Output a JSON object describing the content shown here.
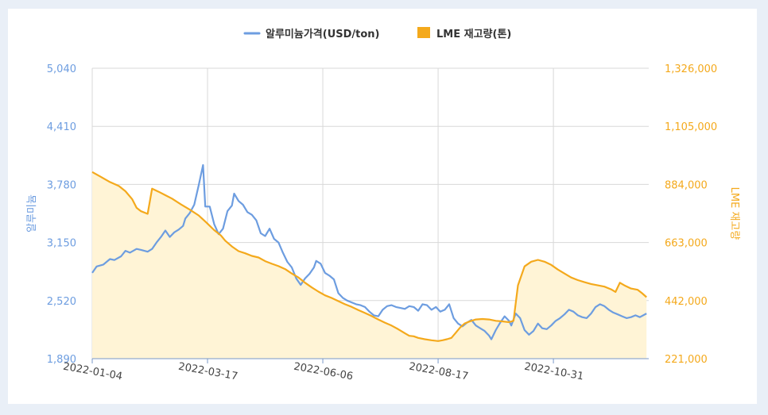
{
  "chart_data": {
    "type": "line",
    "legend": {
      "placement": "top-center",
      "items": [
        {
          "label": "알루미늄가격(USD/ton)",
          "color": "#6d9de0",
          "kind": "line"
        },
        {
          "label": "LME 재고량(톤)",
          "color": "#f4a91c",
          "kind": "area"
        }
      ]
    },
    "y_left": {
      "label": "알루미늄",
      "ticks": [
        "5,040",
        "4,410",
        "3,780",
        "3,150",
        "2,520",
        "1,890"
      ],
      "range": [
        1890,
        5040
      ],
      "color": "#6d9de0"
    },
    "y_right": {
      "label": "LME 재고량",
      "ticks": [
        "1,326,000",
        "1,105,000",
        "884,000",
        "663,000",
        "442,000",
        "221,000"
      ],
      "range": [
        221000,
        1326000
      ],
      "color": "#f4a91c"
    },
    "x": {
      "ticks": [
        "2022-01-04",
        "2022-03-17",
        "2022-06-06",
        "2022-08-17",
        "2022-10-31"
      ],
      "tick_positions": [
        0,
        52,
        104,
        156,
        208
      ],
      "range": [
        0,
        251
      ],
      "grid": true
    },
    "series": [
      {
        "name": "알루미늄가격(USD/ton)",
        "axis": "left",
        "color": "#6d9de0",
        "points": [
          [
            0,
            2820
          ],
          [
            2,
            2890
          ],
          [
            5,
            2910
          ],
          [
            8,
            2970
          ],
          [
            10,
            2960
          ],
          [
            13,
            3000
          ],
          [
            15,
            3060
          ],
          [
            17,
            3040
          ],
          [
            20,
            3080
          ],
          [
            22,
            3070
          ],
          [
            25,
            3050
          ],
          [
            27,
            3080
          ],
          [
            29,
            3150
          ],
          [
            31,
            3210
          ],
          [
            33,
            3280
          ],
          [
            35,
            3210
          ],
          [
            37,
            3260
          ],
          [
            39,
            3290
          ],
          [
            41,
            3330
          ],
          [
            42,
            3410
          ],
          [
            44,
            3470
          ],
          [
            46,
            3560
          ],
          [
            48,
            3770
          ],
          [
            50,
            3990
          ],
          [
            51,
            3540
          ],
          [
            53,
            3540
          ],
          [
            55,
            3350
          ],
          [
            57,
            3240
          ],
          [
            59,
            3300
          ],
          [
            61,
            3490
          ],
          [
            63,
            3550
          ],
          [
            64,
            3680
          ],
          [
            66,
            3600
          ],
          [
            68,
            3560
          ],
          [
            70,
            3480
          ],
          [
            72,
            3450
          ],
          [
            74,
            3390
          ],
          [
            76,
            3250
          ],
          [
            78,
            3220
          ],
          [
            80,
            3300
          ],
          [
            82,
            3190
          ],
          [
            84,
            3150
          ],
          [
            86,
            3040
          ],
          [
            88,
            2940
          ],
          [
            90,
            2880
          ],
          [
            92,
            2760
          ],
          [
            94,
            2690
          ],
          [
            96,
            2760
          ],
          [
            98,
            2810
          ],
          [
            100,
            2880
          ],
          [
            101,
            2950
          ],
          [
            103,
            2920
          ],
          [
            105,
            2820
          ],
          [
            107,
            2790
          ],
          [
            109,
            2750
          ],
          [
            111,
            2600
          ],
          [
            113,
            2550
          ],
          [
            115,
            2520
          ],
          [
            117,
            2500
          ],
          [
            119,
            2480
          ],
          [
            121,
            2470
          ],
          [
            123,
            2450
          ],
          [
            125,
            2400
          ],
          [
            127,
            2360
          ],
          [
            129,
            2350
          ],
          [
            131,
            2420
          ],
          [
            133,
            2460
          ],
          [
            135,
            2470
          ],
          [
            137,
            2450
          ],
          [
            139,
            2440
          ],
          [
            141,
            2430
          ],
          [
            143,
            2460
          ],
          [
            145,
            2450
          ],
          [
            147,
            2410
          ],
          [
            149,
            2480
          ],
          [
            151,
            2470
          ],
          [
            153,
            2420
          ],
          [
            155,
            2450
          ],
          [
            157,
            2400
          ],
          [
            159,
            2420
          ],
          [
            161,
            2480
          ],
          [
            163,
            2330
          ],
          [
            165,
            2270
          ],
          [
            167,
            2240
          ],
          [
            169,
            2280
          ],
          [
            171,
            2310
          ],
          [
            173,
            2250
          ],
          [
            175,
            2220
          ],
          [
            177,
            2190
          ],
          [
            179,
            2140
          ],
          [
            180,
            2100
          ],
          [
            182,
            2200
          ],
          [
            184,
            2280
          ],
          [
            186,
            2350
          ],
          [
            188,
            2300
          ],
          [
            189,
            2250
          ],
          [
            191,
            2380
          ],
          [
            193,
            2330
          ],
          [
            195,
            2200
          ],
          [
            197,
            2150
          ],
          [
            199,
            2190
          ],
          [
            201,
            2270
          ],
          [
            203,
            2220
          ],
          [
            205,
            2210
          ],
          [
            207,
            2250
          ],
          [
            209,
            2300
          ],
          [
            211,
            2330
          ],
          [
            213,
            2370
          ],
          [
            215,
            2420
          ],
          [
            217,
            2400
          ],
          [
            219,
            2360
          ],
          [
            221,
            2340
          ],
          [
            223,
            2330
          ],
          [
            225,
            2380
          ],
          [
            227,
            2450
          ],
          [
            229,
            2480
          ],
          [
            231,
            2460
          ],
          [
            233,
            2420
          ],
          [
            235,
            2390
          ],
          [
            237,
            2370
          ],
          [
            239,
            2350
          ],
          [
            241,
            2330
          ],
          [
            243,
            2340
          ],
          [
            245,
            2360
          ],
          [
            247,
            2340
          ],
          [
            250,
            2380
          ]
        ]
      },
      {
        "name": "LME 재고량(톤)",
        "axis": "right",
        "color": "#f4a91c",
        "points": [
          [
            0,
            931000
          ],
          [
            4,
            912000
          ],
          [
            8,
            893000
          ],
          [
            12,
            878000
          ],
          [
            15,
            858000
          ],
          [
            18,
            828000
          ],
          [
            20,
            795000
          ],
          [
            22,
            782000
          ],
          [
            25,
            772000
          ],
          [
            27,
            868000
          ],
          [
            30,
            856000
          ],
          [
            33,
            843000
          ],
          [
            36,
            830000
          ],
          [
            40,
            808000
          ],
          [
            44,
            788000
          ],
          [
            48,
            766000
          ],
          [
            52,
            735000
          ],
          [
            55,
            710000
          ],
          [
            58,
            690000
          ],
          [
            60,
            670000
          ],
          [
            63,
            648000
          ],
          [
            66,
            630000
          ],
          [
            69,
            622000
          ],
          [
            72,
            612000
          ],
          [
            75,
            606000
          ],
          [
            78,
            592000
          ],
          [
            81,
            582000
          ],
          [
            84,
            573000
          ],
          [
            87,
            562000
          ],
          [
            90,
            545000
          ],
          [
            93,
            530000
          ],
          [
            96,
            510000
          ],
          [
            99,
            492000
          ],
          [
            102,
            476000
          ],
          [
            105,
            462000
          ],
          [
            108,
            452000
          ],
          [
            111,
            440000
          ],
          [
            114,
            428000
          ],
          [
            117,
            418000
          ],
          [
            120,
            406000
          ],
          [
            123,
            395000
          ],
          [
            126,
            383000
          ],
          [
            129,
            370000
          ],
          [
            132,
            358000
          ],
          [
            135,
            347000
          ],
          [
            138,
            333000
          ],
          [
            141,
            318000
          ],
          [
            143,
            308000
          ],
          [
            145,
            306000
          ],
          [
            147,
            300000
          ],
          [
            150,
            295000
          ],
          [
            153,
            291000
          ],
          [
            156,
            288000
          ],
          [
            158,
            291000
          ],
          [
            160,
            295000
          ],
          [
            162,
            300000
          ],
          [
            164,
            320000
          ],
          [
            166,
            340000
          ],
          [
            168,
            355000
          ],
          [
            170,
            362000
          ],
          [
            173,
            370000
          ],
          [
            176,
            372000
          ],
          [
            179,
            370000
          ],
          [
            182,
            365000
          ],
          [
            185,
            363000
          ],
          [
            188,
            360000
          ],
          [
            190,
            365000
          ],
          [
            192,
            500000
          ],
          [
            195,
            572000
          ],
          [
            198,
            590000
          ],
          [
            201,
            597000
          ],
          [
            204,
            590000
          ],
          [
            207,
            578000
          ],
          [
            210,
            560000
          ],
          [
            213,
            545000
          ],
          [
            216,
            530000
          ],
          [
            219,
            520000
          ],
          [
            222,
            512000
          ],
          [
            225,
            505000
          ],
          [
            228,
            500000
          ],
          [
            231,
            495000
          ],
          [
            234,
            485000
          ],
          [
            236,
            475000
          ],
          [
            238,
            510000
          ],
          [
            240,
            500000
          ],
          [
            243,
            488000
          ],
          [
            246,
            483000
          ],
          [
            248,
            470000
          ],
          [
            250,
            455000
          ]
        ]
      }
    ]
  }
}
